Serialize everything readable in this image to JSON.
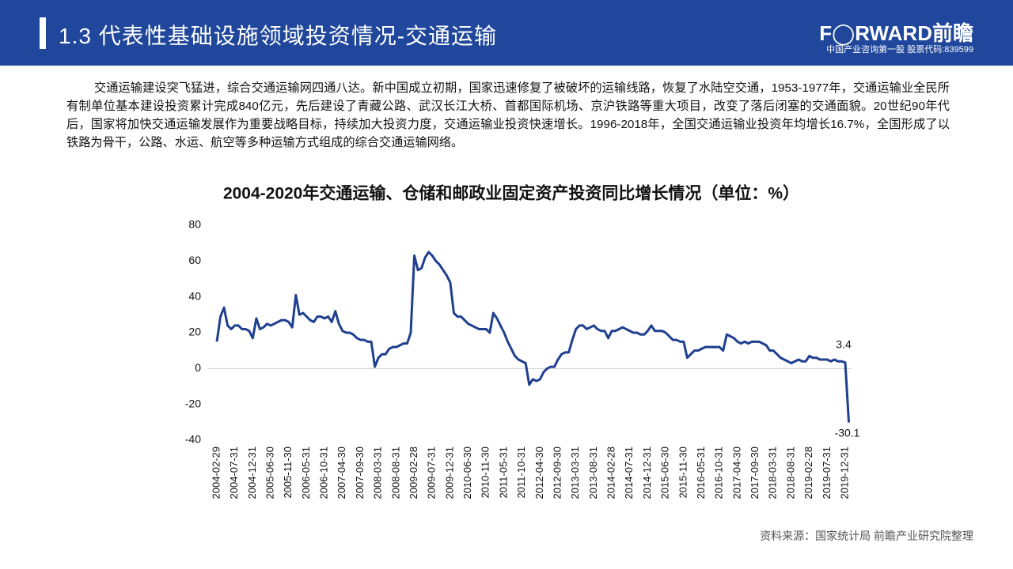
{
  "header": {
    "title": "1.3 代表性基础设施领域投资情况-交通运输",
    "logo": "F◯RWARD前瞻",
    "logo_sub": "中国产业咨询第一股 股票代码:839599"
  },
  "paragraph": "交通运输建设突飞猛进，综合交通运输网四通八达。新中国成立初期，国家迅速修复了被破坏的运输线路，恢复了水陆空交通，1953-1977年，交通运输业全民所有制单位基本建设投资累计完成840亿元，先后建设了青藏公路、武汉长江大桥、首都国际机场、京沪铁路等重大项目，改变了落后闭塞的交通面貌。20世纪90年代后，国家将加快交通运输发展作为重要战略目标，持续加大投资力度，交通运输业投资快速增长。1996-2018年，全国交通运输业投资年均增长16.7%，全国形成了以铁路为骨干，公路、水运、航空等多种运输方式组成的综合交通运输网络。",
  "source": "资料来源：国家统计局 前瞻产业研究院整理",
  "chart_data": {
    "type": "line",
    "title": "2004-2020年交通运输、仓储和邮政业固定资产投资同比增长情况（单位：%）",
    "categories": [
      "2004-02-29",
      null,
      null,
      null,
      null,
      "2004-07-31",
      null,
      null,
      null,
      null,
      "2004-12-31",
      null,
      null,
      null,
      null,
      "2005-06-30",
      null,
      null,
      null,
      null,
      "2005-11-30",
      null,
      null,
      null,
      null,
      "2006-05-31",
      null,
      null,
      null,
      null,
      "2006-10-31",
      null,
      null,
      null,
      null,
      "2007-04-30",
      null,
      null,
      null,
      null,
      "2007-09-30",
      null,
      null,
      null,
      null,
      "2008-03-31",
      null,
      null,
      null,
      null,
      "2008-08-31",
      null,
      null,
      null,
      null,
      "2009-02-28",
      null,
      null,
      null,
      null,
      "2009-07-31",
      null,
      null,
      null,
      null,
      "2009-12-31",
      null,
      null,
      null,
      null,
      "2010-06-30",
      null,
      null,
      null,
      null,
      "2010-11-30",
      null,
      null,
      null,
      null,
      "2011-05-31",
      null,
      null,
      null,
      null,
      "2011-10-31",
      null,
      null,
      null,
      null,
      "2012-04-30",
      null,
      null,
      null,
      null,
      "2012-09-30",
      null,
      null,
      null,
      null,
      "2013-03-31",
      null,
      null,
      null,
      null,
      "2013-08-31",
      null,
      null,
      null,
      null,
      "2014-02-28",
      null,
      null,
      null,
      null,
      "2014-07-31",
      null,
      null,
      null,
      null,
      "2014-12-31",
      null,
      null,
      null,
      null,
      "2015-06-30",
      null,
      null,
      null,
      null,
      "2015-11-30",
      null,
      null,
      null,
      null,
      "2016-05-31",
      null,
      null,
      null,
      null,
      "2016-10-31",
      null,
      null,
      null,
      null,
      "2017-04-30",
      null,
      null,
      null,
      null,
      "2017-09-30",
      null,
      null,
      null,
      null,
      "2018-03-31",
      null,
      null,
      null,
      null,
      "2018-08-31",
      null,
      null,
      null,
      null,
      "2019-02-28",
      null,
      null,
      null,
      null,
      "2019-07-31",
      null,
      null,
      null,
      null,
      "2019-12-31",
      null
    ],
    "values": [
      15,
      29,
      34,
      24,
      22,
      24,
      24,
      22,
      22,
      21,
      17,
      28,
      22,
      23,
      25,
      24,
      25,
      26,
      27,
      27,
      26,
      23,
      41,
      30,
      31,
      29,
      27,
      26,
      29,
      29,
      28,
      29,
      26,
      32,
      25,
      21,
      20,
      20,
      19,
      17,
      16,
      16,
      15,
      15,
      1,
      6,
      8,
      8,
      11,
      12,
      12,
      13,
      14,
      14,
      20,
      63,
      55,
      56,
      62,
      65,
      63,
      60,
      58,
      55,
      52,
      48,
      31,
      29,
      29,
      27,
      25,
      24,
      23,
      22,
      22,
      22,
      20,
      31,
      28,
      24,
      20,
      15,
      11,
      7,
      5,
      4,
      3,
      -9,
      -6,
      -7,
      -6,
      -2,
      0,
      1,
      1,
      5,
      8,
      9,
      9,
      16,
      22,
      24,
      24,
      22,
      23,
      24,
      22,
      21,
      21,
      17,
      21,
      21,
      22,
      23,
      22,
      21,
      20,
      20,
      19,
      19,
      21,
      24,
      21,
      21,
      21,
      20,
      18,
      16,
      16,
      15,
      15,
      6,
      8,
      10,
      10,
      11,
      12,
      12,
      12,
      12,
      12,
      10,
      19,
      18,
      17,
      15,
      14,
      15,
      14,
      15,
      15,
      15,
      14,
      13,
      10,
      10,
      8,
      6,
      5,
      4,
      3,
      4,
      5,
      4,
      4,
      7,
      6,
      6,
      5,
      5,
      5,
      4,
      5,
      4,
      4,
      3.4,
      -30.1
    ],
    "value_labels": [
      null,
      null,
      null,
      null,
      null,
      null,
      null,
      null,
      null,
      null,
      null,
      null,
      null,
      null,
      null,
      null,
      null,
      null,
      null,
      null,
      null,
      null,
      null,
      null,
      null,
      null,
      null,
      null,
      null,
      null,
      null,
      null,
      null,
      null,
      null,
      null,
      null,
      null,
      null,
      null,
      null,
      null,
      null,
      null,
      null,
      null,
      null,
      null,
      null,
      null,
      null,
      null,
      null,
      null,
      null,
      null,
      null,
      null,
      null,
      null,
      null,
      null,
      null,
      null,
      null,
      null,
      null,
      null,
      null,
      null,
      null,
      null,
      null,
      null,
      null,
      null,
      null,
      null,
      null,
      null,
      null,
      null,
      null,
      null,
      null,
      null,
      null,
      null,
      null,
      null,
      null,
      null,
      null,
      null,
      null,
      null,
      null,
      null,
      null,
      null,
      null,
      null,
      null,
      null,
      null,
      null,
      null,
      null,
      null,
      null,
      null,
      null,
      null,
      null,
      null,
      null,
      null,
      null,
      null,
      null,
      null,
      null,
      null,
      null,
      null,
      null,
      null,
      null,
      null,
      null,
      null,
      null,
      null,
      null,
      null,
      null,
      null,
      null,
      null,
      null,
      null,
      null,
      null,
      null,
      null,
      null,
      null,
      null,
      null,
      null,
      null,
      null,
      null,
      null,
      null,
      null,
      null,
      null,
      null,
      null,
      null,
      null,
      null,
      null,
      null,
      null,
      null,
      null,
      null,
      null,
      null,
      null,
      null,
      null,
      null,
      "3.4",
      "-30.1"
    ],
    "color": "#1f3f8f",
    "ylim": [
      -40,
      80
    ],
    "yticks": [
      -40,
      -20,
      0,
      20,
      40,
      60,
      80
    ],
    "zero_line": true
  }
}
